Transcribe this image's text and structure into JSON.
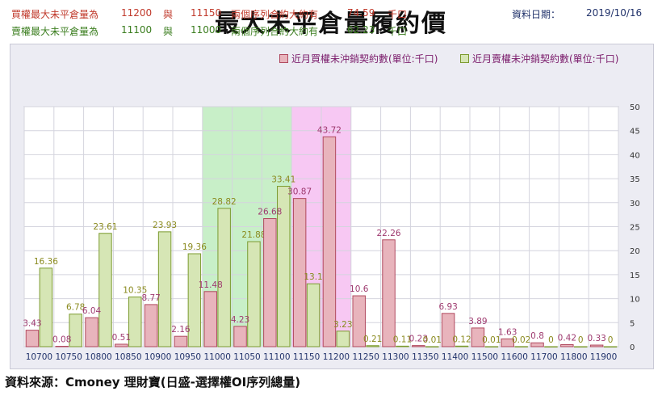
{
  "title": "最大未平倉量履約價",
  "info": {
    "call_row": {
      "label": "買權最大未平倉量為",
      "strike1": "11200",
      "conj": "與",
      "strike2": "11150",
      "desc": "兩個序列合約大約有",
      "amount": "74.59",
      "unit": "千口"
    },
    "put_row": {
      "label": "賣權最大未平倉量為",
      "strike1": "11100",
      "conj": "與",
      "strike2": "11000",
      "desc": "兩個序列合約大約有",
      "amount": "62.23",
      "unit": "千口"
    },
    "date_label": "資料日期：",
    "date_value": "2019/10/16"
  },
  "colors": {
    "call": "#e8b4bc",
    "call_stroke": "#b0485e",
    "put": "#d6e6b5",
    "put_stroke": "#7b9a2e",
    "call_label": "#9e3a6f",
    "put_label": "#8a8a1e",
    "green_band": "#c8efc8",
    "magenta_band": "#f7c8f3"
  },
  "chart_data": {
    "type": "bar",
    "categories": [
      "10700",
      "10750",
      "10800",
      "10850",
      "10900",
      "10950",
      "11000",
      "11050",
      "11100",
      "11150",
      "11200",
      "11250",
      "11300",
      "11350",
      "11400",
      "11500",
      "11600",
      "11700",
      "11800",
      "11900"
    ],
    "series": [
      {
        "name": "近月買權未沖銷契約數(單位:千口)",
        "values": [
          3.43,
          0.08,
          6.04,
          0.51,
          8.77,
          2.16,
          11.48,
          4.23,
          26.68,
          30.87,
          43.72,
          10.6,
          22.26,
          0.23,
          6.93,
          3.89,
          1.63,
          0.8,
          0.42,
          0.33
        ]
      },
      {
        "name": "近月賣權未沖銷契約數(單位:千口)",
        "values": [
          16.36,
          6.78,
          23.61,
          10.35,
          23.93,
          19.36,
          28.82,
          21.88,
          33.41,
          13.1,
          3.23,
          0.21,
          0.11,
          0.01,
          0.12,
          0.01,
          0.02,
          0,
          0,
          0
        ]
      }
    ],
    "y_ticks": [
      "0",
      "5",
      "10",
      "15",
      "20",
      "25",
      "30",
      "35",
      "40",
      "45",
      "50"
    ],
    "ylim": [
      0,
      50
    ],
    "highlight_bands": [
      {
        "from": "11000",
        "to": "11100",
        "color": "green"
      },
      {
        "from": "11150",
        "to": "11200",
        "color": "magenta"
      }
    ],
    "legend_position": "top-right",
    "grid": true
  },
  "source": "資料來源：Cmoney 理財寶(日盛-選擇權OI序列總量)"
}
